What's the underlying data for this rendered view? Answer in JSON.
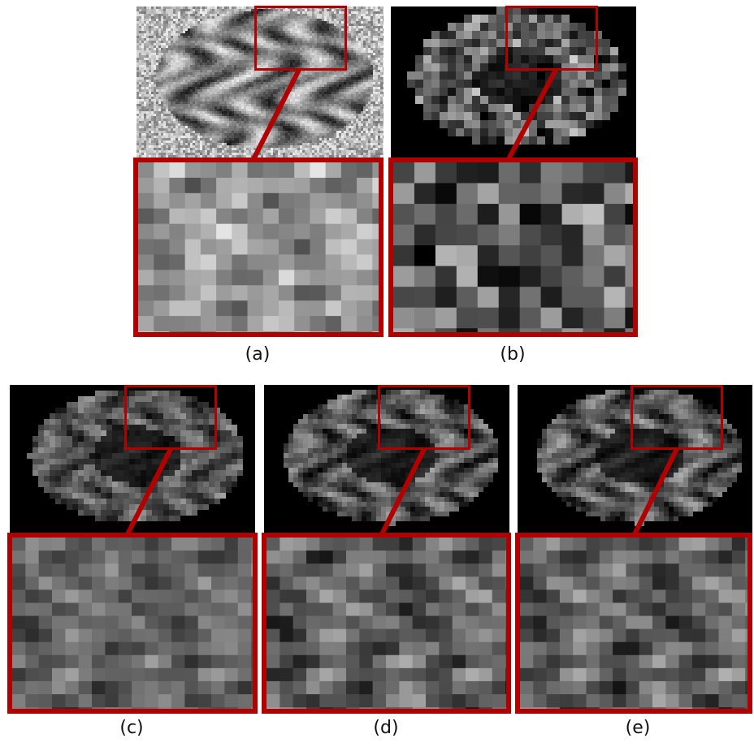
{
  "panels": [
    {
      "label": "(a)",
      "style": "t1-highres",
      "accent": "#b00000"
    },
    {
      "label": "(b)",
      "style": "lowres-pixelated",
      "accent": "#b00000"
    },
    {
      "label": "(c)",
      "style": "reconstruction-blurry",
      "accent": "#b00000"
    },
    {
      "label": "(d)",
      "style": "reconstruction-sharp",
      "accent": "#b00000"
    },
    {
      "label": "(e)",
      "style": "reconstruction-sharp",
      "accent": "#b00000"
    }
  ],
  "colors": {
    "roi_border": "#b00000",
    "background": "#ffffff"
  }
}
